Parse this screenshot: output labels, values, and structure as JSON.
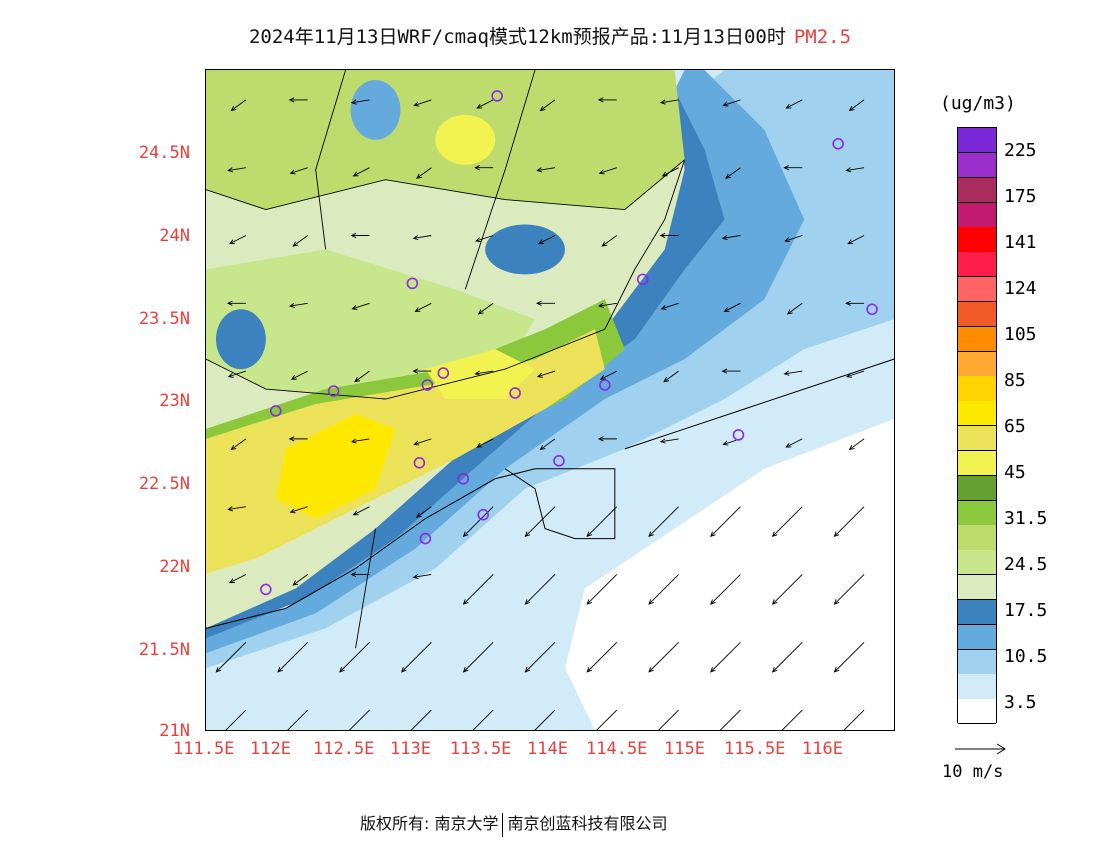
{
  "title": {
    "main": "2024年11月13日WRF/cmaq模式12km预报产品:11月13日00时",
    "pollutant": "PM2.5"
  },
  "map": {
    "lat_labels": [
      "24.5N",
      "24N",
      "23.5N",
      "23N",
      "22.5N",
      "22N",
      "21.5N",
      "21N"
    ],
    "lon_labels": [
      "111.5E",
      "112E",
      "112.5E",
      "113E",
      "113.5E",
      "114E",
      "114.5E",
      "115E",
      "115.5E",
      "116E"
    ],
    "station_markers": 18,
    "wind_direction": "mostly from NE (arrows pointing SW)"
  },
  "colorbar": {
    "units": "(ug/m3)",
    "labels": [
      "225",
      "175",
      "141",
      "124",
      "105",
      "85",
      "65",
      "45",
      "31.5",
      "24.5",
      "17.5",
      "10.5",
      "3.5"
    ],
    "colors": [
      "#7a28d8",
      "#9b2fcc",
      "#a82c5e",
      "#c21a70",
      "#ff0000",
      "#ff1e4b",
      "#ff6464",
      "#f05a28",
      "#ff8c00",
      "#ffa832",
      "#ffd400",
      "#ffe800",
      "#ece25a",
      "#f2f250",
      "#66a032",
      "#8cc83c",
      "#bedc6e",
      "#c8e68c",
      "#dceac0",
      "#3c82be",
      "#64aadc",
      "#a0d2f0",
      "#d2ebf8",
      "#ffffff"
    ]
  },
  "wind_reference": {
    "label": "10 m/s"
  },
  "footer": {
    "left": "版权所有: 南京大学",
    "right": "南京创蓝科技有限公司"
  },
  "colors": {
    "label_red": "#e8413c",
    "marker_purple": "#8a2be2"
  }
}
